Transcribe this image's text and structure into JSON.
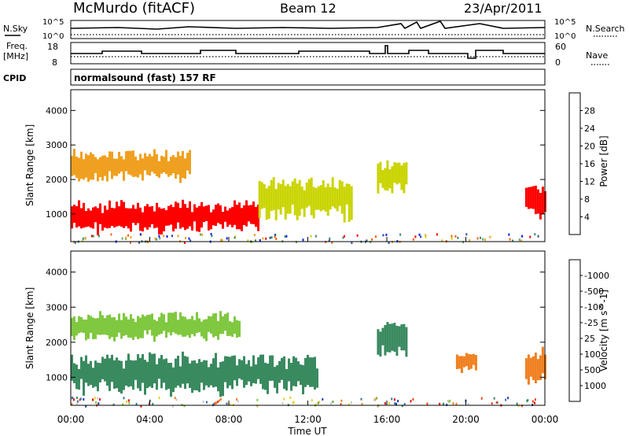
{
  "header": {
    "station": "McMurdo (fitACF)",
    "beam": "Beam 12",
    "date": "23/Apr/2011"
  },
  "status_panels": {
    "nsky_label": "N.Sky",
    "nsearch_label": "N.Search",
    "nsky_ticks": [
      "10^5",
      "10^0"
    ],
    "nsearch_ticks": [
      "10^5",
      "10^0"
    ],
    "freq_label_1": "Freq.",
    "freq_label_2": "[MHz]",
    "freq_ticks": [
      "18",
      "8"
    ],
    "nave_label": "Nave",
    "nave_ticks": [
      "60",
      "0"
    ],
    "cpid_label": "CPID",
    "cpid_text": "normalsound (fast) 157 RF"
  },
  "chart_data": [
    {
      "type": "heatmap",
      "name": "power-panel",
      "ylabel": "Slant Range [km]",
      "xlim": [
        0,
        24
      ],
      "ylim": [
        200,
        4600
      ],
      "yticks": [
        1000,
        2000,
        3000,
        4000
      ],
      "colorbar_label": "Power [dB]",
      "colorbar_ticks": [
        "4",
        "8",
        "12",
        "16",
        "20",
        "24",
        "28"
      ],
      "colorbar_colors": [
        "#0a1cf0",
        "#2e4fa8",
        "#3a8a70",
        "#5aa86a",
        "#cad400",
        "#f0a020",
        "#f06010",
        "#ff0000"
      ],
      "features": [
        {
          "t": [
            0.0,
            9.5
          ],
          "r": [
            500,
            1300
          ],
          "level": 28
        },
        {
          "t": [
            0.0,
            6.0
          ],
          "r": [
            2000,
            2800
          ],
          "level": 20
        },
        {
          "t": [
            9.5,
            14.2
          ],
          "r": [
            900,
            2000
          ],
          "level": 16
        },
        {
          "t": [
            15.5,
            17.0
          ],
          "r": [
            1600,
            2500
          ],
          "level": 16
        },
        {
          "t": [
            23.0,
            24.0
          ],
          "r": [
            900,
            1800
          ],
          "level": 28
        }
      ]
    },
    {
      "type": "heatmap",
      "name": "velocity-panel",
      "xlabel": "Time UT",
      "ylabel": "Slant Range [km]",
      "xlim": [
        0,
        24
      ],
      "ylim": [
        200,
        4600
      ],
      "xticks": [
        "00:00",
        "04:00",
        "08:00",
        "12:00",
        "16:00",
        "20:00",
        "00:00"
      ],
      "yticks": [
        1000,
        2000,
        3000,
        4000
      ],
      "colorbar_label": "Velocity [m s^-1]",
      "colorbar_ticks": [
        "1000",
        "500",
        "100",
        "25",
        "-25",
        "-100",
        "-500",
        "-1000"
      ],
      "colorbar_colors": [
        "#1a3cb0",
        "#3a70b0",
        "#3a8a60",
        "#80c840",
        "#c8c8c8",
        "#e8d020",
        "#f08020",
        "#f04010",
        "#e00000"
      ],
      "features": [
        {
          "t": [
            0.0,
            12.5
          ],
          "r": [
            600,
            1600
          ],
          "level": 100
        },
        {
          "t": [
            0.0,
            8.5
          ],
          "r": [
            2100,
            2800
          ],
          "level": 25
        },
        {
          "t": [
            15.5,
            17.0
          ],
          "r": [
            1600,
            2500
          ],
          "level": 100
        },
        {
          "t": [
            19.5,
            20.5
          ],
          "r": [
            1200,
            1700
          ],
          "level": -500
        },
        {
          "t": [
            23.0,
            24.0
          ],
          "r": [
            900,
            1800
          ],
          "level": -500
        }
      ]
    }
  ]
}
